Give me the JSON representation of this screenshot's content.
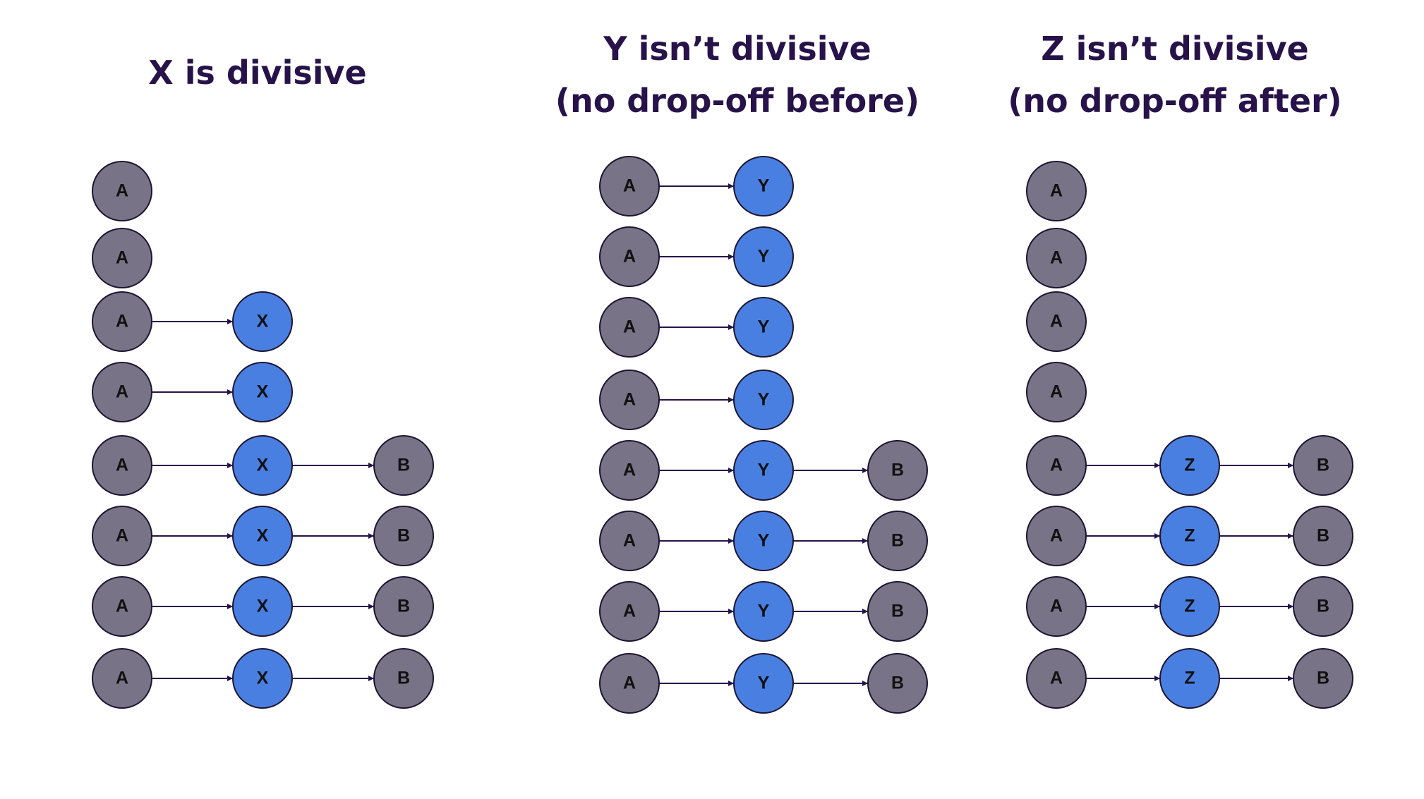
{
  "colors": {
    "gray_node": "#787386",
    "blue_node": "#4a7fe2",
    "node_stroke": "#1c1530",
    "edge": "#27134a",
    "title": "#27134a"
  },
  "panels": [
    {
      "title_lines": [
        "X is divisive"
      ],
      "rows": [
        [
          "A"
        ],
        [
          "A"
        ],
        [
          "A",
          "X"
        ],
        [
          "A",
          "X"
        ],
        [
          "A",
          "X",
          "B"
        ],
        [
          "A",
          "X",
          "B"
        ],
        [
          "A",
          "X",
          "B"
        ],
        [
          "A",
          "X",
          "B"
        ]
      ]
    },
    {
      "title_lines": [
        "Y isn’t divisive",
        "(no drop-off before)"
      ],
      "rows": [
        [
          "A",
          "Y"
        ],
        [
          "A",
          "Y"
        ],
        [
          "A",
          "Y"
        ],
        [
          "A",
          "Y"
        ],
        [
          "A",
          "Y",
          "B"
        ],
        [
          "A",
          "Y",
          "B"
        ],
        [
          "A",
          "Y",
          "B"
        ],
        [
          "A",
          "Y",
          "B"
        ]
      ]
    },
    {
      "title_lines": [
        "Z isn’t divisive",
        "(no drop-off after)"
      ],
      "rows": [
        [
          "A"
        ],
        [
          "A"
        ],
        [
          "A"
        ],
        [
          "A"
        ],
        [
          "A",
          "Z",
          "B"
        ],
        [
          "A",
          "Z",
          "B"
        ],
        [
          "A",
          "Z",
          "B"
        ],
        [
          "A",
          "Z",
          "B"
        ]
      ]
    }
  ]
}
